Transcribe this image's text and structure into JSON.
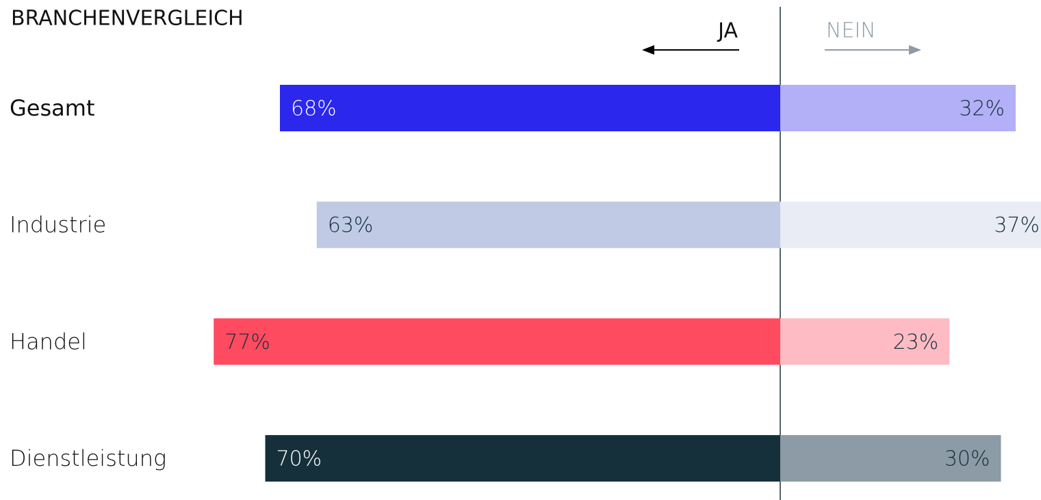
{
  "chart_data": {
    "type": "diverging_bar",
    "title": "BRANCHENVERGLEICH",
    "categories": [
      "Gesamt",
      "Industrie",
      "Handel",
      "Dienstleistung"
    ],
    "series": [
      {
        "name": "JA",
        "values": [
          68,
          63,
          77,
          70
        ],
        "value_labels": [
          "68%",
          "63%",
          "77%",
          "70%"
        ],
        "colors": [
          "#2b27ed",
          "#c0cae4",
          "#ff4b60",
          "#16303b"
        ]
      },
      {
        "name": "NEIN",
        "values": [
          32,
          37,
          23,
          30
        ],
        "value_labels": [
          "32%",
          "37%",
          "23%",
          "30%"
        ],
        "colors": [
          "#b3b0f7",
          "#e9ecf5",
          "#ffbbc3",
          "#8c9ba6"
        ]
      }
    ]
  }
}
